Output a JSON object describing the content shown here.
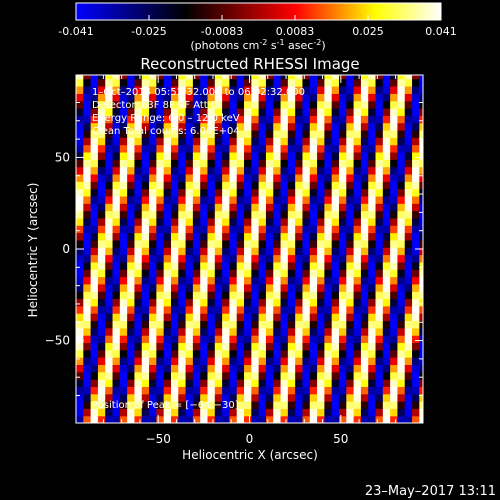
{
  "colorbar": {
    "stops": [
      "#0000ff",
      "#000000",
      "#ff0000",
      "#ffff00",
      "#ffffff"
    ],
    "tick_labels": [
      "-0.041",
      "-0.025",
      "-0.0083",
      "0.0083",
      "0.025",
      "0.041"
    ],
    "unit_main": "(photons cm",
    "unit_exp1": "-2",
    "unit_mid": " s",
    "unit_exp2": "-1",
    "unit_asec": " asec",
    "unit_exp3": "-2",
    "unit_close": ")"
  },
  "chart_data": {
    "type": "heatmap",
    "title": "Reconstructed RHESSI Image",
    "xlabel": "Heliocentric X (arcsec)",
    "ylabel": "Heliocentric Y (arcsec)",
    "xlim": [
      -95,
      95
    ],
    "ylim": [
      -95,
      95
    ],
    "x_ticks": [
      -50,
      0,
      50
    ],
    "y_ticks": [
      50,
      0,
      -50
    ],
    "x_tick_labels": [
      "−50",
      "0",
      "50"
    ],
    "y_tick_labels": [
      "50",
      "0",
      "−50"
    ],
    "value_range": [
      -0.041,
      0.041
    ],
    "pattern": {
      "pixel_size_arcsec": 4,
      "stripe_period_arcsec": 20,
      "stripe_slope": 3.7
    },
    "annotations": [
      "1–Oct–2014 05:52:32.000 to 06:02:32.000",
      "Detectors: 3F 8F 9F Att 0",
      "Energy Range: 6.0 – 12.0 keV",
      "Clean   Total counts: 6.06E+04"
    ],
    "peak_label": "Position of Peak = [−64,−30]"
  },
  "footer": {
    "date": "23–May–2017 13:11"
  }
}
